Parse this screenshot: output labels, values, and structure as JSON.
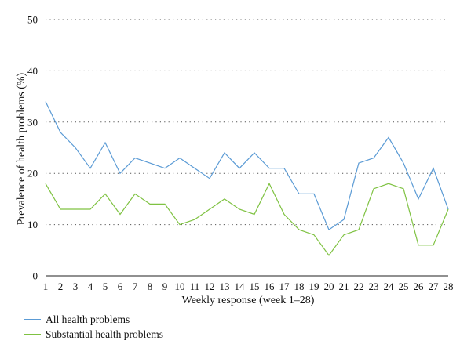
{
  "chart_data": {
    "type": "line",
    "xlabel": "Weekly response (week 1–28)",
    "ylabel": "Prevalence of health problems (%)",
    "ylim": [
      0,
      50
    ],
    "yticks": [
      0,
      10,
      20,
      30,
      40,
      50
    ],
    "grid": "horizontal dotted",
    "legend_position": "bottom-left",
    "x": [
      1,
      2,
      3,
      4,
      5,
      6,
      7,
      8,
      9,
      10,
      11,
      12,
      13,
      14,
      15,
      16,
      17,
      18,
      19,
      20,
      21,
      22,
      23,
      24,
      25,
      26,
      27,
      28
    ],
    "series": [
      {
        "name": "All health problems",
        "color": "#5b9bd5",
        "values": [
          34,
          28,
          25,
          21,
          26,
          20,
          23,
          22,
          21,
          23,
          21,
          19,
          24,
          21,
          24,
          21,
          21,
          16,
          16,
          9,
          11,
          22,
          23,
          27,
          22,
          15,
          21,
          13
        ]
      },
      {
        "name": "Substantial health problems",
        "color": "#7fc242",
        "values": [
          18,
          13,
          13,
          13,
          16,
          12,
          16,
          14,
          14,
          10,
          11,
          13,
          15,
          13,
          12,
          18,
          12,
          9,
          8,
          4,
          8,
          9,
          17,
          18,
          17,
          6,
          6,
          13
        ]
      }
    ]
  }
}
